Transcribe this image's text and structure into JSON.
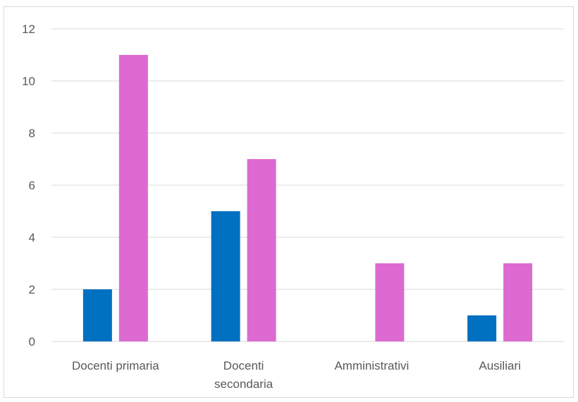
{
  "chart_data": {
    "type": "bar",
    "title": "",
    "xlabel": "",
    "ylabel": "",
    "ylim": [
      0,
      12
    ],
    "yticks": [
      0,
      2,
      4,
      6,
      8,
      10,
      12
    ],
    "grid": true,
    "legend": "none",
    "categories": [
      [
        "Docenti primaria"
      ],
      [
        "Docenti",
        "secondaria"
      ],
      [
        "Amministrativi"
      ],
      [
        "Ausiliari"
      ]
    ],
    "series": [
      {
        "color": "#0070c0",
        "values": [
          2,
          5,
          0,
          1
        ]
      },
      {
        "color": "#dd6ad1",
        "values": [
          11,
          7,
          3,
          3
        ]
      }
    ],
    "colors": {
      "gridline": "#d9d9d9",
      "axis_line": "#d9d9d9",
      "label_text": "#595959"
    }
  }
}
